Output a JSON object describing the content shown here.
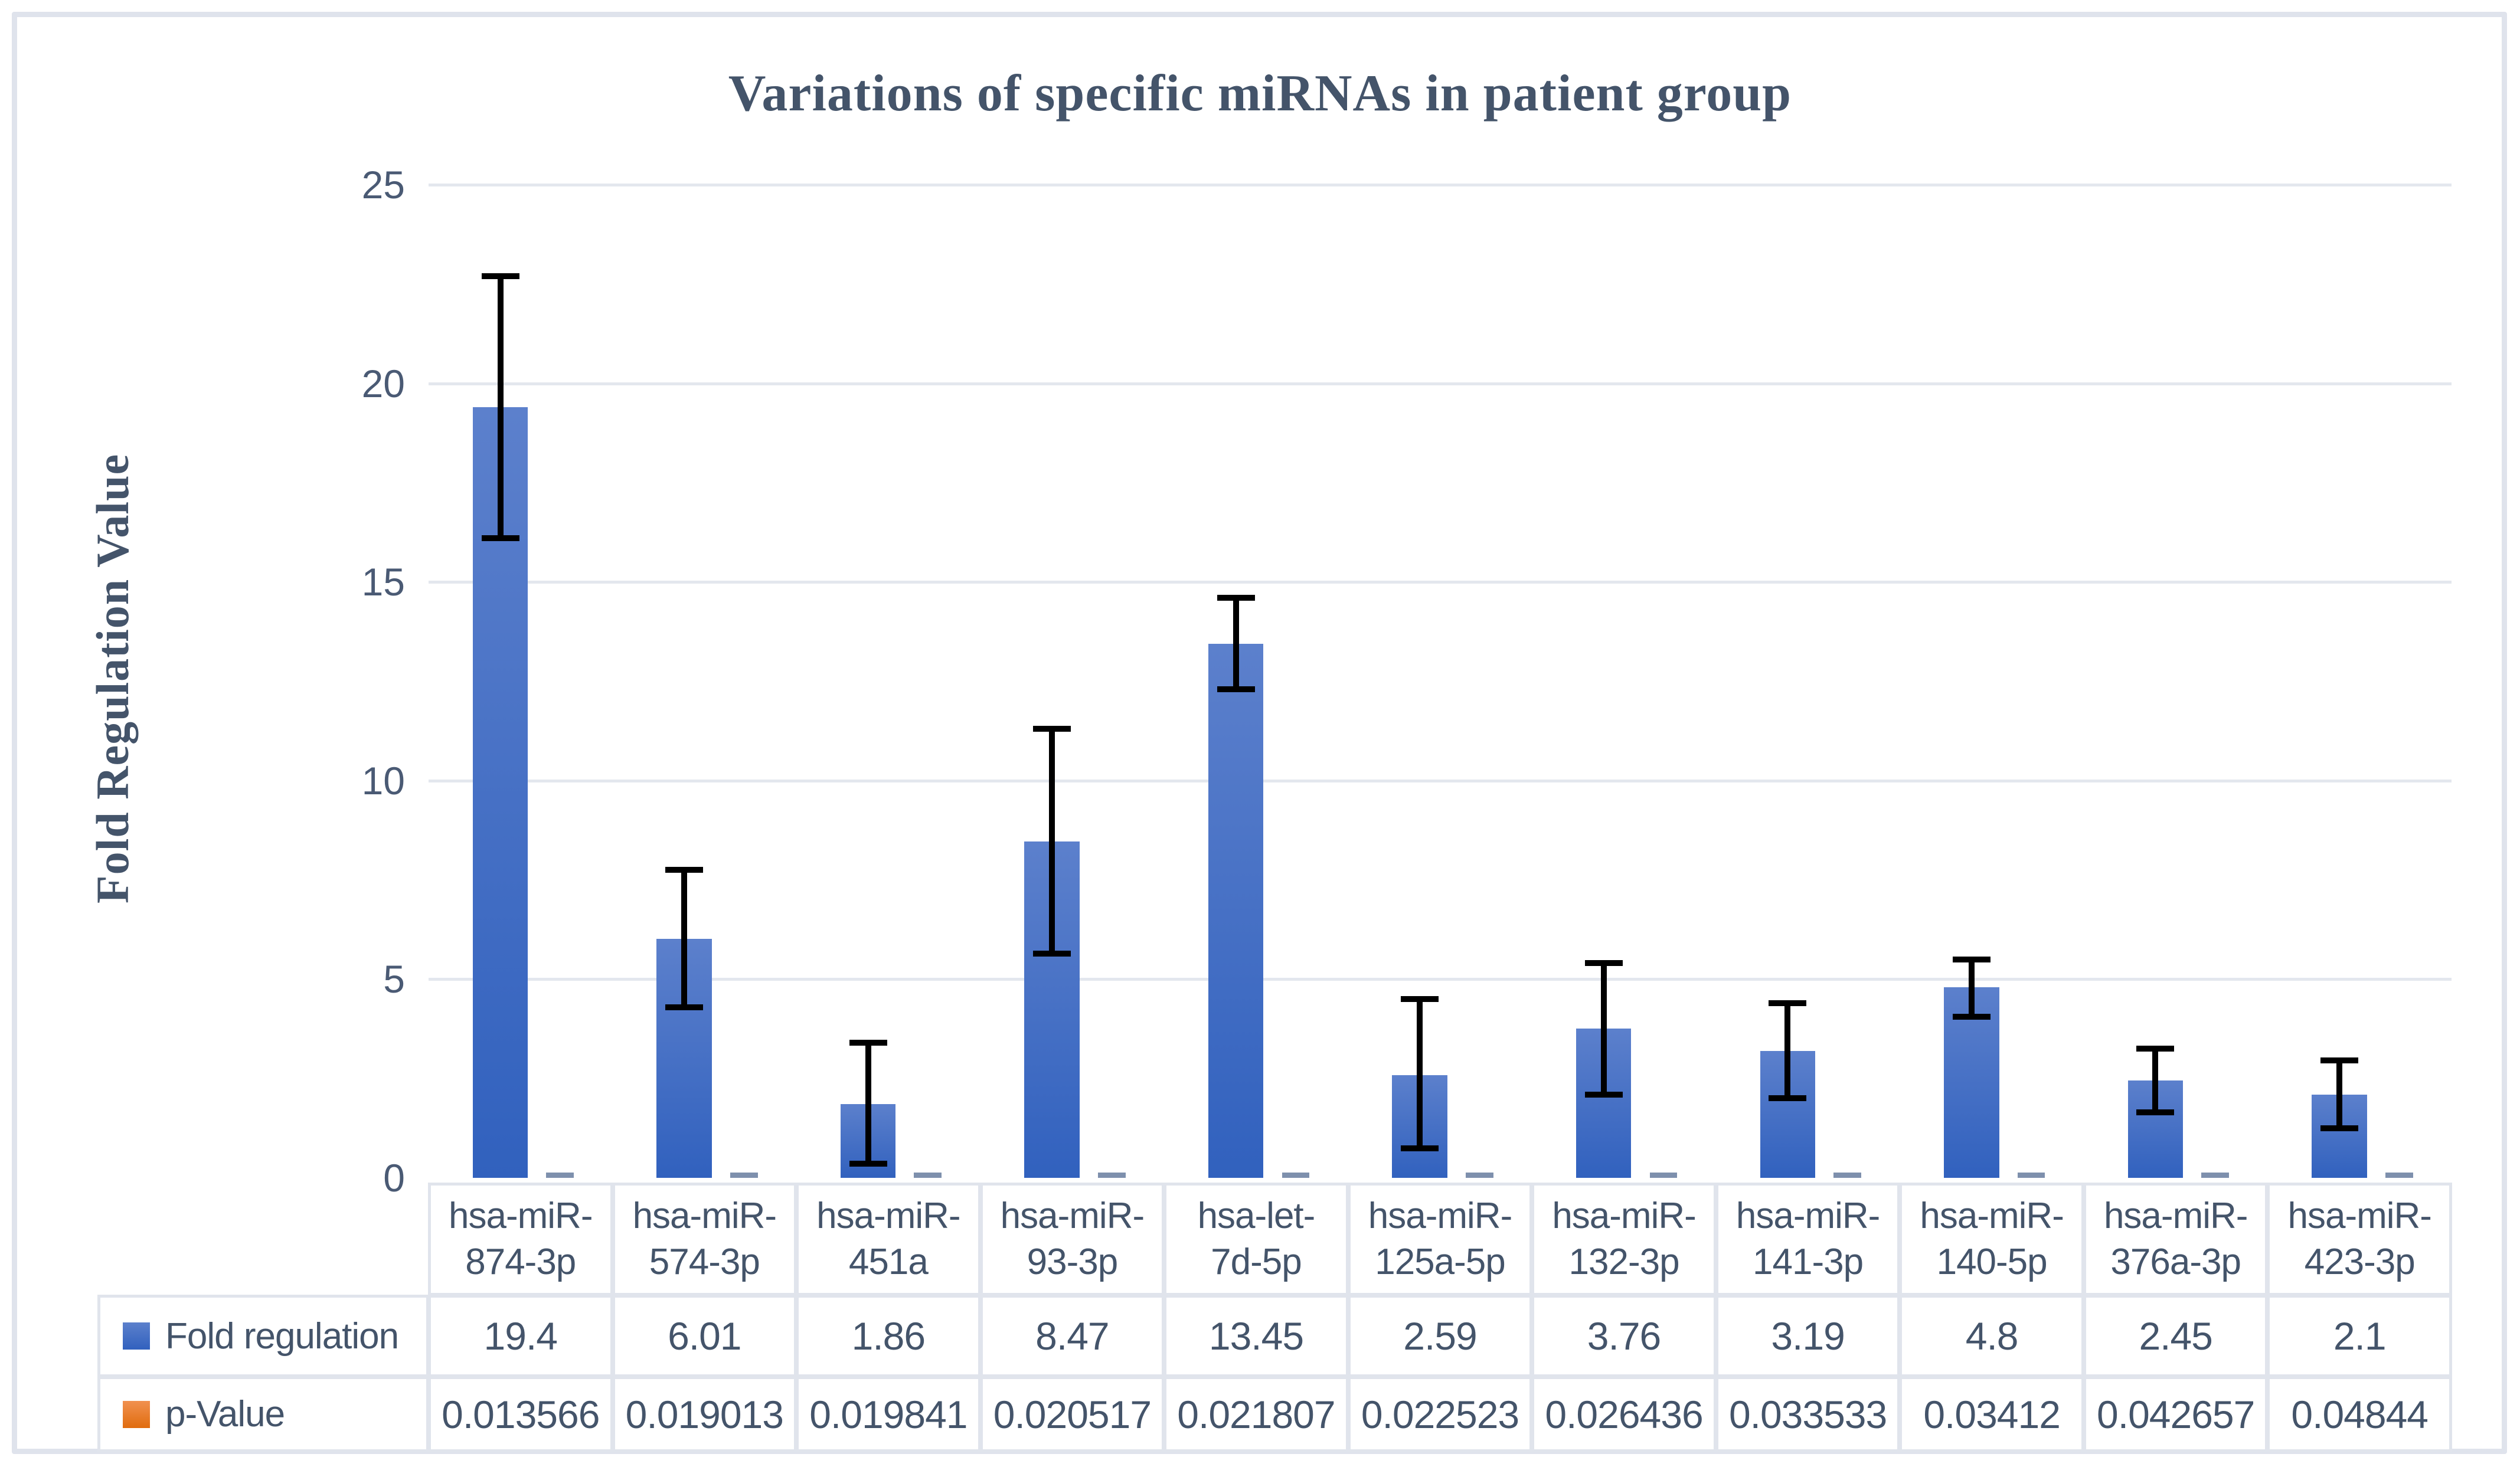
{
  "figure": {
    "title": "Variations of specific miRNAs in patient group",
    "y_axis_title": "Fold Regulation Value"
  },
  "chart_data": {
    "type": "bar",
    "title": "Variations of specific miRNAs in patient group",
    "xlabel": "",
    "ylabel": "Fold Regulation Value",
    "ylim": [
      0,
      25
    ],
    "yticks": [
      0,
      5,
      10,
      15,
      20,
      25
    ],
    "grid": true,
    "legend_position": "table-left",
    "categories": [
      "hsa-miR-874-3p",
      "hsa-miR-574-3p",
      "hsa-miR-451a",
      "hsa-miR-93-3p",
      "hsa-let-7d-5p",
      "hsa-miR-125a-5p",
      "hsa-miR-132-3p",
      "hsa-miR-141-3p",
      "hsa-miR-140-5p",
      "hsa-miR-376a-3p",
      "hsa-miR-423-3p"
    ],
    "categories_wrapped": [
      [
        "hsa-miR-",
        "874-3p"
      ],
      [
        "hsa-miR-",
        "574-3p"
      ],
      [
        "hsa-miR-",
        "451a"
      ],
      [
        "hsa-miR-",
        "93-3p"
      ],
      [
        "hsa-let-",
        "7d-5p"
      ],
      [
        "hsa-miR-",
        "125a-5p"
      ],
      [
        "hsa-miR-",
        "132-3p"
      ],
      [
        "hsa-miR-",
        "141-3p"
      ],
      [
        "hsa-miR-",
        "140-5p"
      ],
      [
        "hsa-miR-",
        "376a-3p"
      ],
      [
        "hsa-miR-",
        "423-3p"
      ]
    ],
    "series": [
      {
        "name": "Fold regulation",
        "color": "#4472C4",
        "values": [
          19.4,
          6.01,
          1.86,
          8.47,
          13.45,
          2.59,
          3.76,
          3.19,
          4.8,
          2.45,
          2.1
        ],
        "error_upper_cap": [
          22.7,
          7.75,
          3.4,
          11.3,
          14.6,
          4.5,
          5.4,
          4.4,
          5.5,
          3.25,
          2.95
        ],
        "error_lower_cap": [
          16.1,
          4.3,
          0.35,
          5.65,
          12.3,
          0.75,
          2.1,
          2.0,
          4.05,
          1.65,
          1.25
        ]
      },
      {
        "name": "p-Value",
        "color": "#ED7D31",
        "values": [
          0.013566,
          0.019013,
          0.019841,
          0.020517,
          0.021807,
          0.022523,
          0.026436,
          0.033533,
          0.03412,
          0.042657,
          0.04844
        ]
      }
    ]
  },
  "table": {
    "row_headers": [
      "Fold regulation",
      "p-Value"
    ],
    "fold_values_display": [
      "19.4",
      "6.01",
      "1.86",
      "8.47",
      "13.45",
      "2.59",
      "3.76",
      "3.19",
      "4.8",
      "2.45",
      "2.1"
    ],
    "p_values_display": [
      "0.013566",
      "0.019013",
      "0.019841",
      "0.020517",
      "0.021807",
      "0.022523",
      "0.026436",
      "0.033533",
      "0.03412",
      "0.042657",
      "0.04844"
    ]
  },
  "colors": {
    "text": "#44546A",
    "gridline": "#E3E7EE",
    "table_border": "#E0E4EC",
    "bar_top": "#5C80CC",
    "bar_bottom": "#3161BE",
    "fold_series": "#4472C4",
    "p_series": "#ED7D31",
    "p_dash": "#7E90AD",
    "error_bar": "#000000"
  }
}
